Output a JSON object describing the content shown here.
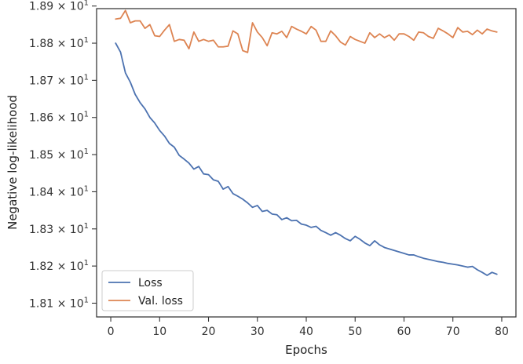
{
  "chart_data": {
    "type": "line",
    "xlabel": "Epochs",
    "ylabel": "Negative log-likelihood",
    "xlim": [
      -2.9,
      82.9
    ],
    "ylim": [
      18.063,
      18.893
    ],
    "x_ticks": [
      0,
      10,
      20,
      30,
      40,
      50,
      60,
      70,
      80
    ],
    "y_ticks": [
      {
        "value": 18.1,
        "mantissa": "1.81",
        "base": "10",
        "exponent": "1"
      },
      {
        "value": 18.2,
        "mantissa": "1.82",
        "base": "10",
        "exponent": "1"
      },
      {
        "value": 18.3,
        "mantissa": "1.83",
        "base": "10",
        "exponent": "1"
      },
      {
        "value": 18.4,
        "mantissa": "1.84",
        "base": "10",
        "exponent": "1"
      },
      {
        "value": 18.5,
        "mantissa": "1.85",
        "base": "10",
        "exponent": "1"
      },
      {
        "value": 18.6,
        "mantissa": "1.86",
        "base": "10",
        "exponent": "1"
      },
      {
        "value": 18.7,
        "mantissa": "1.87",
        "base": "10",
        "exponent": "1"
      },
      {
        "value": 18.8,
        "mantissa": "1.88",
        "base": "10",
        "exponent": "1"
      },
      {
        "value": 18.9,
        "mantissa": "1.89",
        "base": "10",
        "exponent": "1"
      }
    ],
    "legend_position": "lower-left",
    "grid": false,
    "x": [
      1,
      2,
      3,
      4,
      5,
      6,
      7,
      8,
      9,
      10,
      11,
      12,
      13,
      14,
      15,
      16,
      17,
      18,
      19,
      20,
      21,
      22,
      23,
      24,
      25,
      26,
      27,
      28,
      29,
      30,
      31,
      32,
      33,
      34,
      35,
      36,
      37,
      38,
      39,
      40,
      41,
      42,
      43,
      44,
      45,
      46,
      47,
      48,
      49,
      50,
      51,
      52,
      53,
      54,
      55,
      56,
      57,
      58,
      59,
      60,
      61,
      62,
      63,
      64,
      65,
      66,
      67,
      68,
      69,
      70,
      71,
      72,
      73,
      74,
      75,
      76,
      77,
      78,
      79
    ],
    "series": [
      {
        "name": "Loss",
        "color": "#4c72b0",
        "values": [
          18.8,
          18.776,
          18.72,
          18.695,
          18.662,
          18.64,
          18.623,
          18.6,
          18.585,
          18.565,
          18.55,
          18.53,
          18.52,
          18.498,
          18.488,
          18.477,
          18.461,
          18.468,
          18.448,
          18.446,
          18.432,
          18.428,
          18.407,
          18.414,
          18.395,
          18.388,
          18.38,
          18.37,
          18.358,
          18.363,
          18.347,
          18.35,
          18.34,
          18.338,
          18.325,
          18.33,
          18.322,
          18.323,
          18.313,
          18.31,
          18.304,
          18.307,
          18.296,
          18.29,
          18.283,
          18.29,
          18.283,
          18.274,
          18.268,
          18.28,
          18.272,
          18.262,
          18.255,
          18.268,
          18.257,
          18.25,
          18.246,
          18.242,
          18.238,
          18.234,
          18.23,
          18.23,
          18.225,
          18.221,
          18.218,
          18.215,
          18.212,
          18.21,
          18.207,
          18.205,
          18.203,
          18.2,
          18.197,
          18.199,
          18.19,
          18.183,
          18.175,
          18.183,
          18.178
        ]
      },
      {
        "name": "Val. loss",
        "color": "#dd8452",
        "values": [
          18.865,
          18.867,
          18.888,
          18.855,
          18.86,
          18.86,
          18.84,
          18.85,
          18.82,
          18.818,
          18.835,
          18.85,
          18.805,
          18.81,
          18.808,
          18.785,
          18.83,
          18.805,
          18.81,
          18.805,
          18.808,
          18.79,
          18.79,
          18.792,
          18.833,
          18.825,
          18.78,
          18.775,
          18.855,
          18.83,
          18.815,
          18.793,
          18.828,
          18.825,
          18.832,
          18.815,
          18.845,
          18.838,
          18.832,
          18.825,
          18.845,
          18.835,
          18.805,
          18.805,
          18.833,
          18.82,
          18.803,
          18.795,
          18.818,
          18.81,
          18.805,
          18.8,
          18.828,
          18.815,
          18.825,
          18.815,
          18.822,
          18.808,
          18.825,
          18.825,
          18.818,
          18.808,
          18.83,
          18.828,
          18.818,
          18.813,
          18.84,
          18.833,
          18.825,
          18.815,
          18.842,
          18.83,
          18.832,
          18.823,
          18.835,
          18.825,
          18.838,
          18.833,
          18.83
        ]
      }
    ]
  }
}
